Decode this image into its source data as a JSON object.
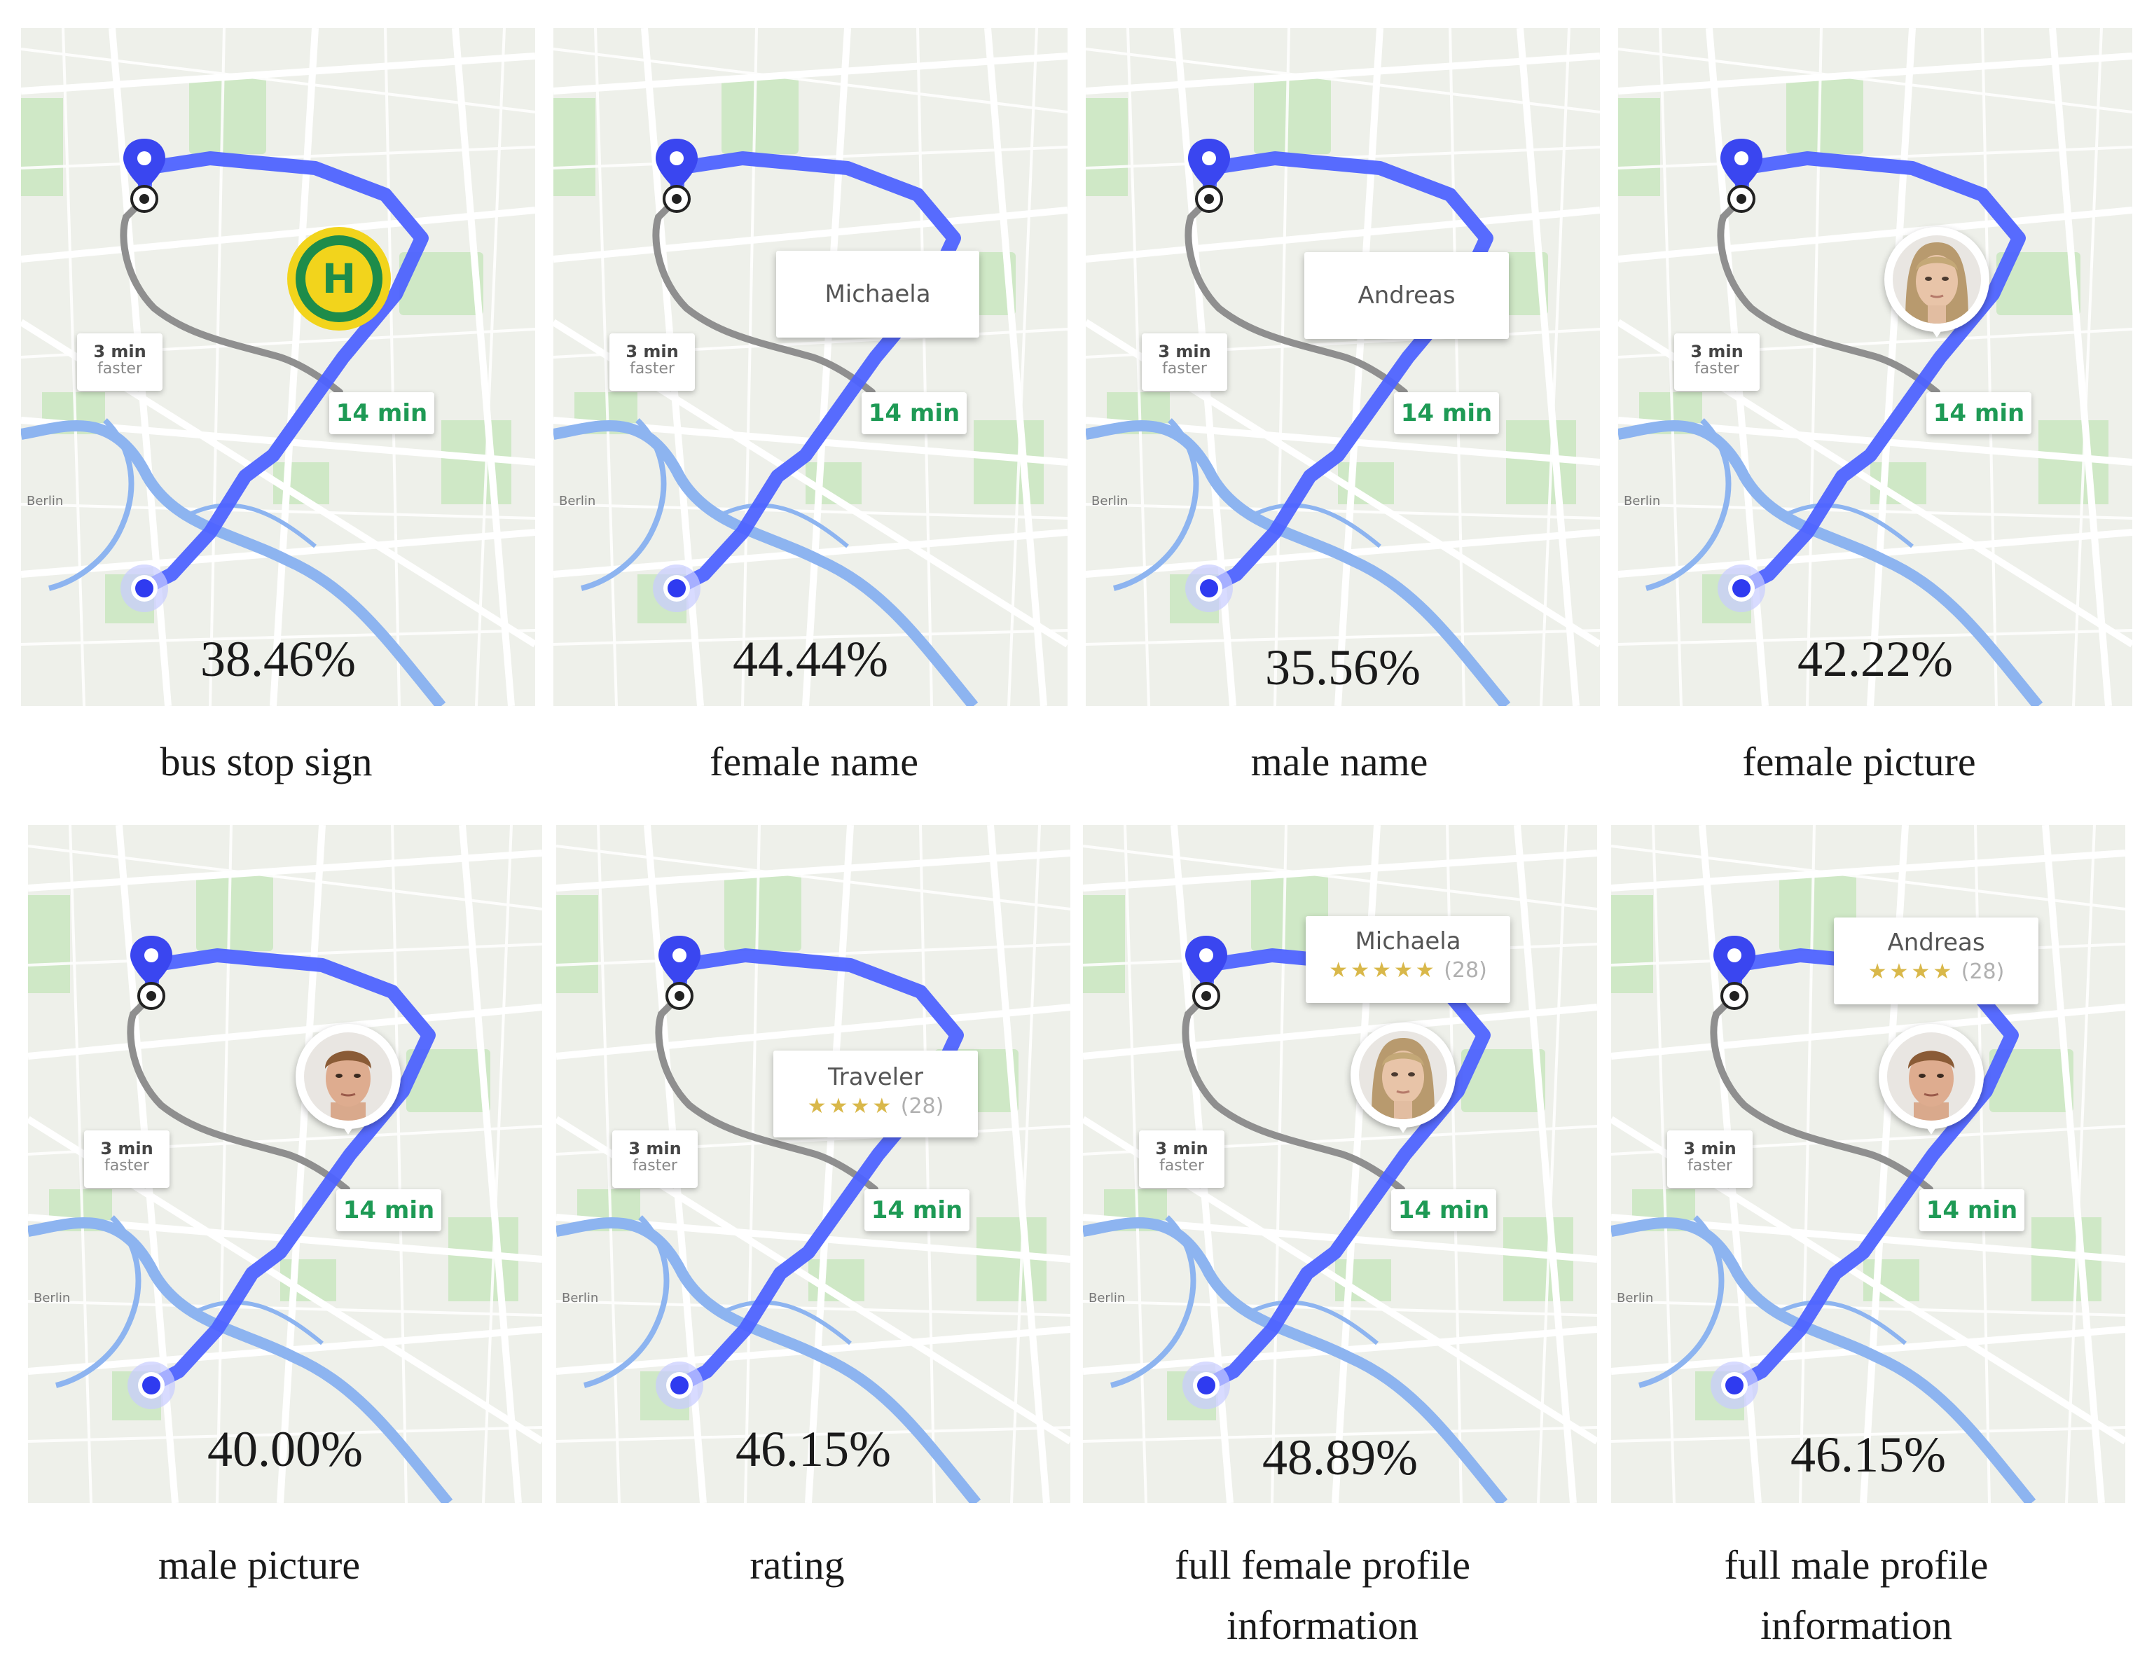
{
  "colors": {
    "route_blue": "#4e63ff",
    "route_gray": "#8f8f8f",
    "time_green": "#1e9a55",
    "star_gold": "#d9b84a",
    "bus_stop_yellow": "#f2d41c",
    "bus_stop_green": "#1e8c4a"
  },
  "map": {
    "time_label": "14 min",
    "alt_route_time": "3 min",
    "alt_route_note": "faster",
    "city_label": "Berlin"
  },
  "panels": [
    {
      "caption": "bus stop sign",
      "percentage": "38.46%",
      "overlay": "bus-stop-icon"
    },
    {
      "caption": "female name",
      "percentage": "44.44%",
      "overlay": "name-callout",
      "name": "Michaela"
    },
    {
      "caption": "male name",
      "percentage": "35.56%",
      "overlay": "name-callout",
      "name": "Andreas"
    },
    {
      "caption": "female picture",
      "percentage": "42.22%",
      "overlay": "female-avatar"
    },
    {
      "caption": "male picture",
      "percentage": "40.00%",
      "overlay": "male-avatar"
    },
    {
      "caption": "rating",
      "percentage": "46.15%",
      "overlay": "rating-callout",
      "name": "Traveler",
      "stars": "★★★★",
      "rating_count": "(28)"
    },
    {
      "caption_line1": "full female profile",
      "caption_line2": "information",
      "percentage": "48.89%",
      "overlay": "full-profile-female",
      "name": "Michaela",
      "stars": "★★★★★",
      "rating_count": "(28)"
    },
    {
      "caption_line1": "full male profile",
      "caption_line2": "information",
      "percentage": "46.15%",
      "overlay": "full-profile-male",
      "name": "Andreas",
      "stars": "★★★★",
      "rating_count": "(28)"
    }
  ]
}
